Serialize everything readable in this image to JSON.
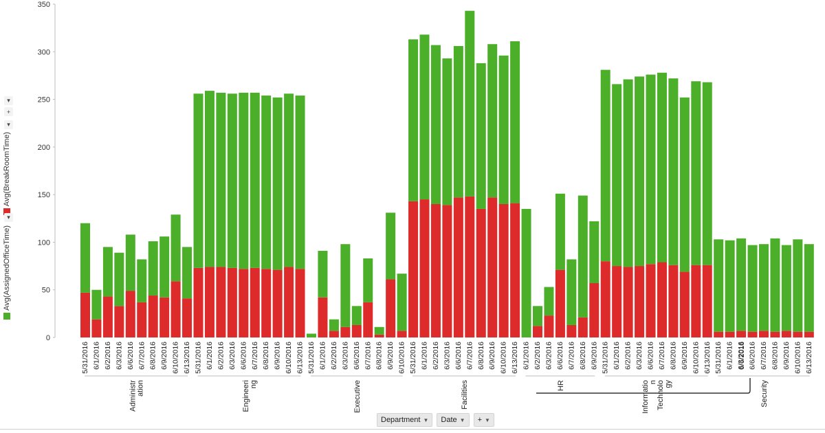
{
  "colors": {
    "assigned": "#4caf2a",
    "breakroom": "#dd2a2a"
  },
  "legend": {
    "assigned_label": "Avg(AssignedOfficeTime)",
    "breakroom_label": "Avg(BreakRoomTime)"
  },
  "controls": {
    "plus": "+",
    "caret": "▾"
  },
  "bottom_bar": {
    "department_label": "Department",
    "date_label": "Date",
    "plus_label": "+"
  },
  "chart_data": {
    "type": "bar",
    "stacked": true,
    "ylim": [
      0,
      350
    ],
    "yticks": [
      0,
      50,
      100,
      150,
      200,
      250,
      300,
      350
    ],
    "grid": false,
    "legend_position": "left",
    "groups": [
      {
        "department": "Administr ation",
        "dates": [
          "5/31/2016",
          "6/1/2016",
          "6/2/2016",
          "6/3/2016",
          "6/6/2016",
          "6/7/2016",
          "6/8/2016",
          "6/9/2016",
          "6/10/2016",
          "6/13/2016"
        ],
        "breakroom": [
          47,
          19,
          43,
          33,
          49,
          37,
          44,
          42,
          59,
          41
        ],
        "assigned": [
          73,
          31,
          52,
          56,
          59,
          45,
          57,
          64,
          70,
          54
        ]
      },
      {
        "department": "Engineeri ng",
        "dates": [
          "5/31/2016",
          "6/1/2016",
          "6/2/2016",
          "6/3/2016",
          "6/6/2016",
          "6/7/2016",
          "6/8/2016",
          "6/9/2016",
          "6/10/2016",
          "6/13/2016"
        ],
        "breakroom": [
          73,
          74,
          74,
          73,
          72,
          73,
          72,
          71,
          74,
          72
        ],
        "assigned": [
          183,
          185,
          183,
          183,
          185,
          184,
          182,
          181,
          182,
          182
        ]
      },
      {
        "department": "Executive",
        "dates": [
          "5/31/2016",
          "6/1/2016",
          "6/2/2016",
          "6/3/2016",
          "6/6/2016",
          "6/7/2016",
          "6/8/2016",
          "6/9/2016",
          "6/10/2016"
        ],
        "breakroom": [
          0,
          42,
          7,
          11,
          13,
          37,
          3,
          61,
          7
        ],
        "assigned": [
          4,
          49,
          12,
          87,
          20,
          46,
          8,
          70,
          60
        ]
      },
      {
        "department": "Facilities",
        "dates": [
          "5/31/2016",
          "6/1/2016",
          "6/2/2016",
          "6/3/2016",
          "6/6/2016",
          "6/7/2016",
          "6/8/2016",
          "6/9/2016",
          "6/10/2016",
          "6/13/2016"
        ],
        "breakroom": [
          143,
          145,
          140,
          139,
          147,
          148,
          135,
          147,
          140,
          141
        ],
        "assigned": [
          170,
          173,
          167,
          154,
          159,
          195,
          153,
          161,
          156,
          170
        ]
      },
      {
        "department": "HR",
        "dates": [
          "6/1/2016",
          "6/2/2016",
          "6/3/2016",
          "6/6/2016",
          "6/7/2016",
          "6/8/2016",
          "6/9/2016"
        ],
        "breakroom": [
          0,
          12,
          23,
          71,
          13,
          21,
          57
        ],
        "assigned": [
          135,
          21,
          30,
          80,
          69,
          128,
          65
        ]
      },
      {
        "department": "Informatio n Technolo gy",
        "dates": [
          "5/31/2016",
          "6/1/2016",
          "6/2/2016",
          "6/3/2016",
          "6/6/2016",
          "6/7/2016",
          "6/8/2016",
          "6/9/2016",
          "6/10/2016",
          "6/13/2016"
        ],
        "breakroom": [
          80,
          75,
          74,
          75,
          77,
          79,
          76,
          69,
          76,
          76
        ],
        "assigned": [
          201,
          191,
          197,
          199,
          199,
          199,
          196,
          183,
          193,
          192
        ]
      },
      {
        "department": "Security",
        "dates": [
          "5/31/2016",
          "6/1/2016",
          "6/3/2016",
          "6/6/2016",
          "6/7/2016",
          "6/8/2016",
          "6/9/2016",
          "6/10/2016",
          "6/13/2016"
        ],
        "breakroom": [
          6,
          6,
          7,
          6,
          7,
          6,
          7,
          6,
          6
        ],
        "assigned": [
          97,
          96,
          97,
          91,
          91,
          98,
          90,
          97,
          92
        ],
        "extra_date_labels": [
          "6/6/2016"
        ]
      }
    ]
  }
}
